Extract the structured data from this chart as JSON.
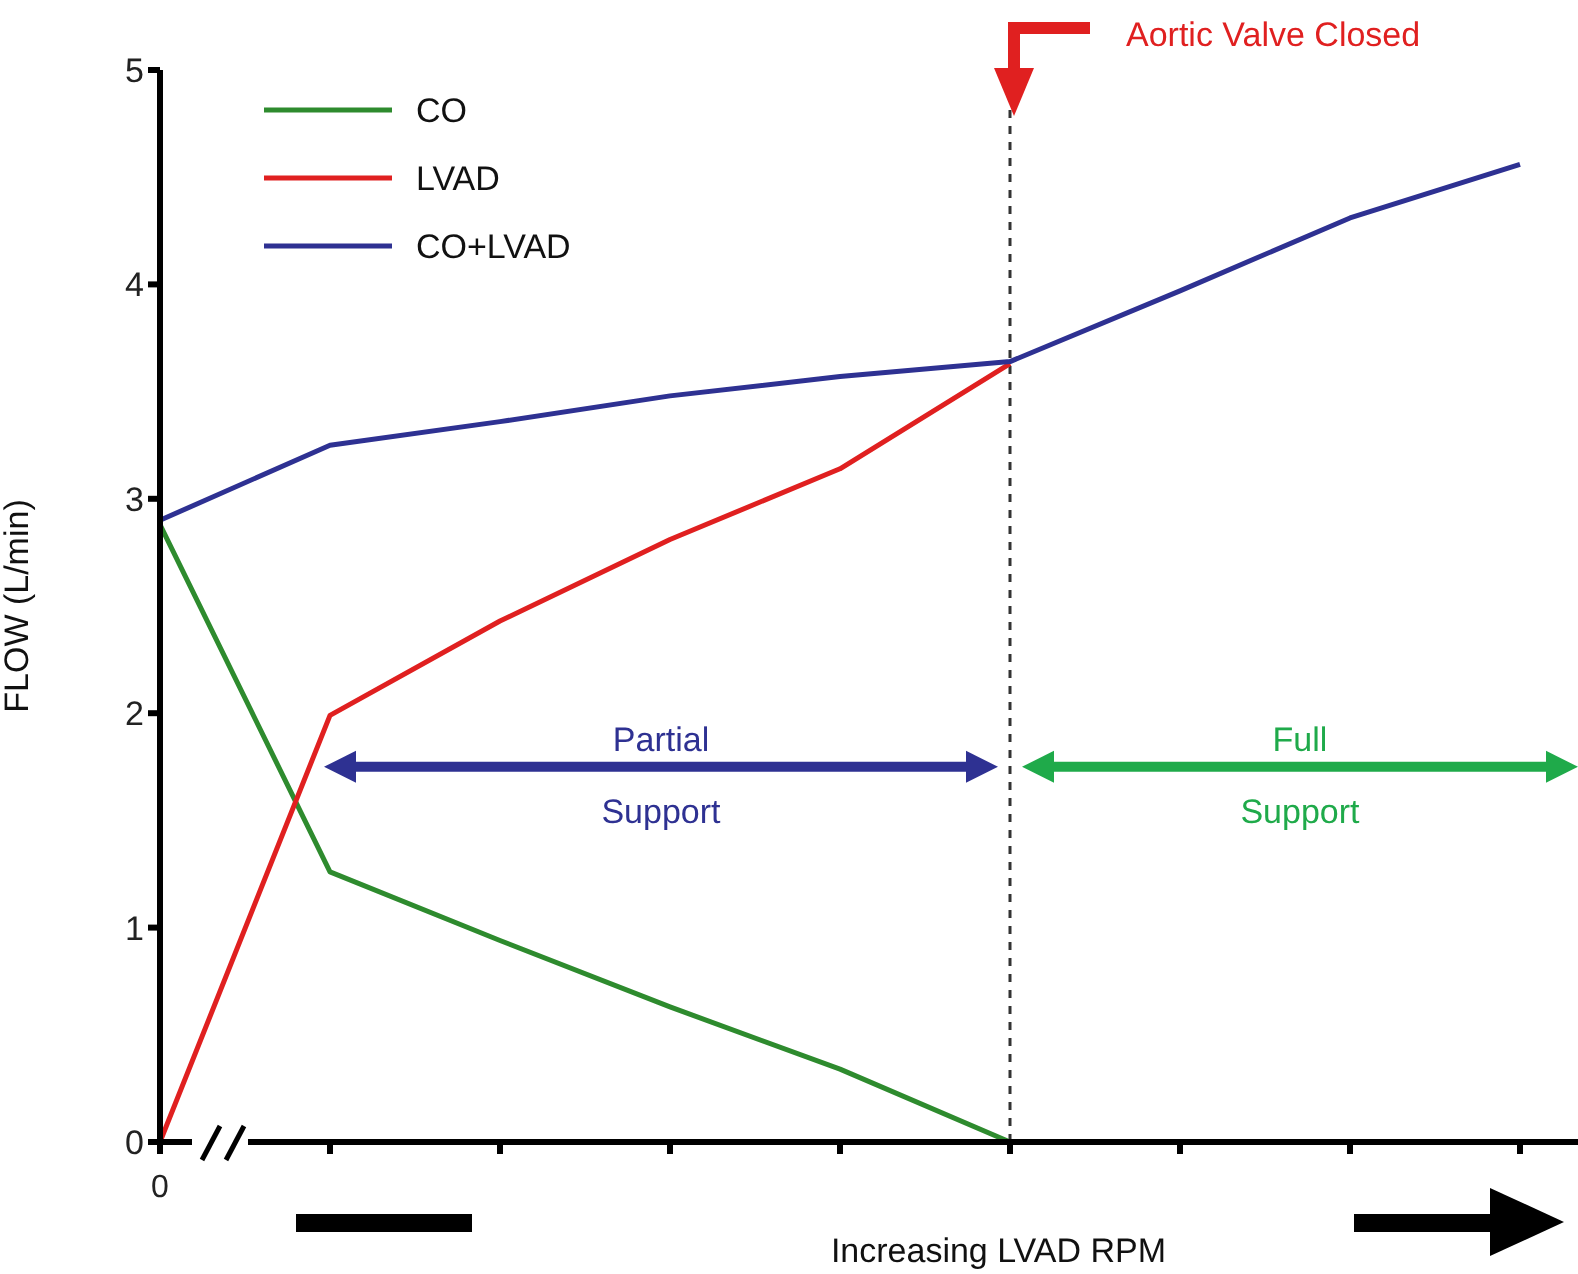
{
  "chart_data": {
    "type": "line",
    "xlabel": "Increasing LVAD RPM",
    "ylabel": "FLOW (L/min)",
    "categories": [
      "0",
      null,
      null,
      null,
      null,
      null,
      null,
      null,
      null
    ],
    "ylim": [
      0,
      5
    ],
    "yticks": [
      0,
      1,
      2,
      3,
      4,
      5
    ],
    "series": [
      {
        "name": "CO",
        "color": "#2e8b2e",
        "values": [
          2.88,
          1.26,
          0.94,
          0.63,
          0.34,
          0,
          null,
          null,
          null
        ]
      },
      {
        "name": "LVAD",
        "color": "#e02020",
        "values": [
          0,
          1.99,
          2.43,
          2.81,
          3.14,
          3.63,
          null,
          null,
          null
        ]
      },
      {
        "name": "CO+LVAD",
        "color": "#2e3192",
        "values": [
          2.9,
          3.25,
          3.36,
          3.48,
          3.57,
          3.64,
          3.97,
          4.31,
          4.56
        ]
      }
    ],
    "ref_lines": [
      {
        "axis": "x",
        "label": "Aortic Valve Closed",
        "color": "#333333",
        "line_style": "dashed"
      }
    ],
    "annotations": [
      "Partial Support",
      "Full Support"
    ],
    "legend": "top left",
    "grid": false,
    "marker": "none",
    "line_style": "solid"
  }
}
